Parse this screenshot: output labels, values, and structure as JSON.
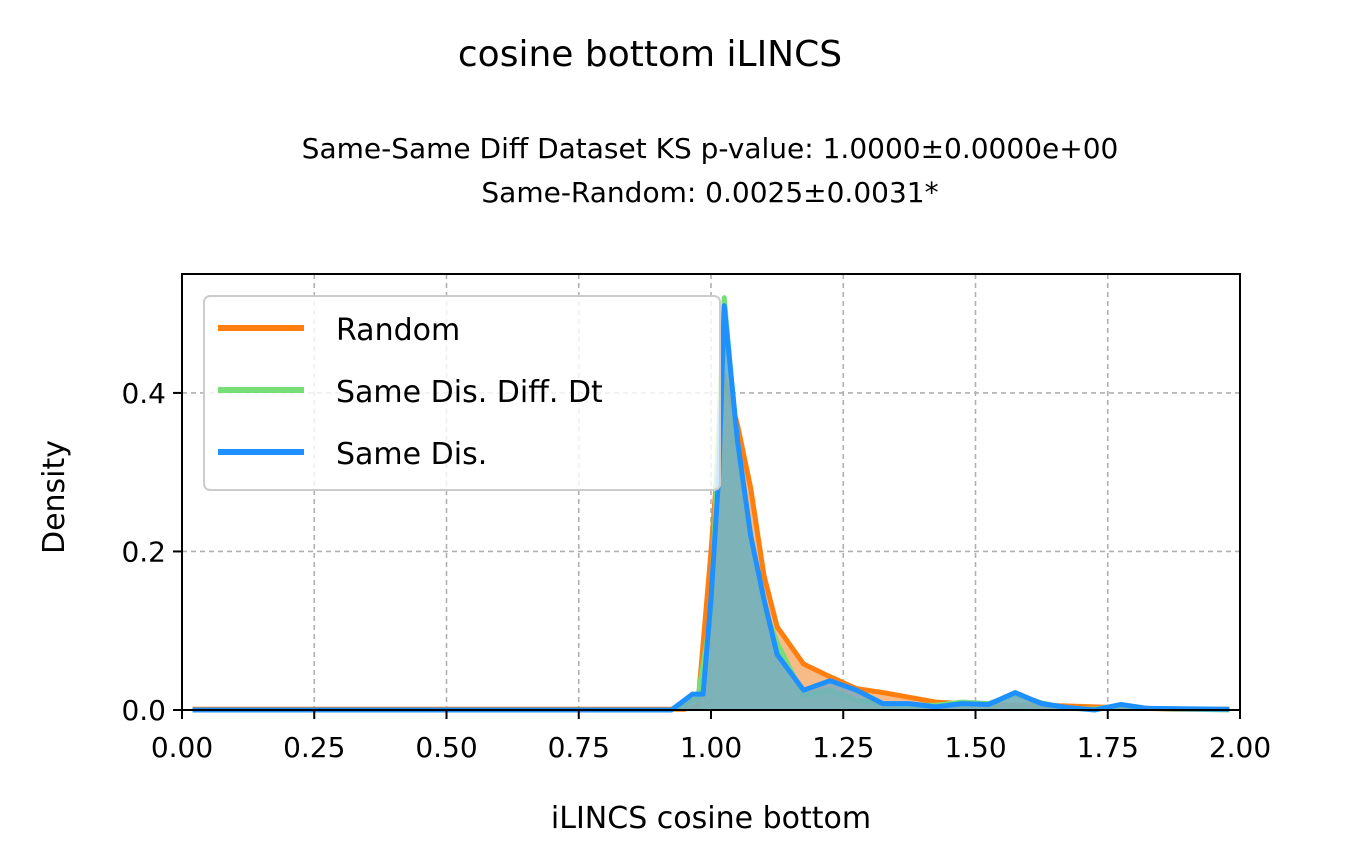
{
  "chart_data": {
    "type": "area",
    "title": "cosine bottom iLINCS",
    "subtitle_line1": "Same-Same Diff Dataset  KS p-value: 1.0000±0.0000e+00",
    "subtitle_line2": "Same-Random: 0.0025±0.0031*",
    "xlabel": "iLINCS cosine bottom",
    "ylabel": "Density",
    "xlim": [
      0.0,
      2.0
    ],
    "ylim": [
      0.0,
      0.55
    ],
    "x_ticks": [
      "0.00",
      "0.25",
      "0.50",
      "0.75",
      "1.00",
      "1.25",
      "1.50",
      "1.75",
      "2.00"
    ],
    "y_ticks": [
      "0.0",
      "0.2",
      "0.4"
    ],
    "grid": true,
    "legend_position": "upper-left",
    "series": [
      {
        "name": "Random",
        "color": "#ff7f0e",
        "fill_color": "#f4a460",
        "points": [
          [
            0.02,
            0.001
          ],
          [
            0.95,
            0.001
          ],
          [
            0.975,
            0.005
          ],
          [
            1.0,
            0.2
          ],
          [
            1.025,
            0.42
          ],
          [
            1.05,
            0.36
          ],
          [
            1.075,
            0.28
          ],
          [
            1.1,
            0.17
          ],
          [
            1.125,
            0.105
          ],
          [
            1.175,
            0.058
          ],
          [
            1.225,
            0.042
          ],
          [
            1.275,
            0.027
          ],
          [
            1.325,
            0.022
          ],
          [
            1.375,
            0.016
          ],
          [
            1.425,
            0.01
          ],
          [
            1.475,
            0.008
          ],
          [
            1.525,
            0.007
          ],
          [
            1.575,
            0.006
          ],
          [
            1.625,
            0.006
          ],
          [
            1.675,
            0.005
          ],
          [
            1.725,
            0.004
          ],
          [
            1.775,
            0.003
          ],
          [
            1.825,
            0.002
          ],
          [
            1.875,
            0.001
          ],
          [
            1.98,
            0.001
          ]
        ]
      },
      {
        "name": "Same Dis. Diff. Dt",
        "color": "#77dd77",
        "fill_color": "#8fd68f",
        "points": [
          [
            0.02,
            0.0
          ],
          [
            0.925,
            0.0
          ],
          [
            0.975,
            0.015
          ],
          [
            1.0,
            0.12
          ],
          [
            1.025,
            0.52
          ],
          [
            1.05,
            0.33
          ],
          [
            1.075,
            0.22
          ],
          [
            1.1,
            0.13
          ],
          [
            1.125,
            0.085
          ],
          [
            1.175,
            0.018
          ],
          [
            1.225,
            0.025
          ],
          [
            1.275,
            0.012
          ],
          [
            1.325,
            0.008
          ],
          [
            1.375,
            0.006
          ],
          [
            1.425,
            0.006
          ],
          [
            1.475,
            0.01
          ],
          [
            1.525,
            0.008
          ],
          [
            1.575,
            0.02
          ],
          [
            1.625,
            0.009
          ],
          [
            1.675,
            0.002
          ],
          [
            1.725,
            0.001
          ],
          [
            1.775,
            0.006
          ],
          [
            1.825,
            0.002
          ],
          [
            1.98,
            0.0
          ]
        ]
      },
      {
        "name": "Same Dis.",
        "color": "#1e90ff",
        "fill_color": "#6fa8c8",
        "points": [
          [
            0.02,
            0.0
          ],
          [
            0.925,
            0.0
          ],
          [
            0.965,
            0.02
          ],
          [
            0.985,
            0.02
          ],
          [
            1.0,
            0.14
          ],
          [
            1.015,
            0.3
          ],
          [
            1.025,
            0.51
          ],
          [
            1.05,
            0.34
          ],
          [
            1.075,
            0.22
          ],
          [
            1.1,
            0.14
          ],
          [
            1.125,
            0.07
          ],
          [
            1.175,
            0.025
          ],
          [
            1.225,
            0.037
          ],
          [
            1.275,
            0.025
          ],
          [
            1.325,
            0.008
          ],
          [
            1.375,
            0.008
          ],
          [
            1.425,
            0.004
          ],
          [
            1.475,
            0.008
          ],
          [
            1.525,
            0.007
          ],
          [
            1.575,
            0.022
          ],
          [
            1.625,
            0.008
          ],
          [
            1.675,
            0.003
          ],
          [
            1.725,
            0.0
          ],
          [
            1.775,
            0.007
          ],
          [
            1.825,
            0.002
          ],
          [
            1.98,
            0.001
          ]
        ]
      }
    ]
  }
}
